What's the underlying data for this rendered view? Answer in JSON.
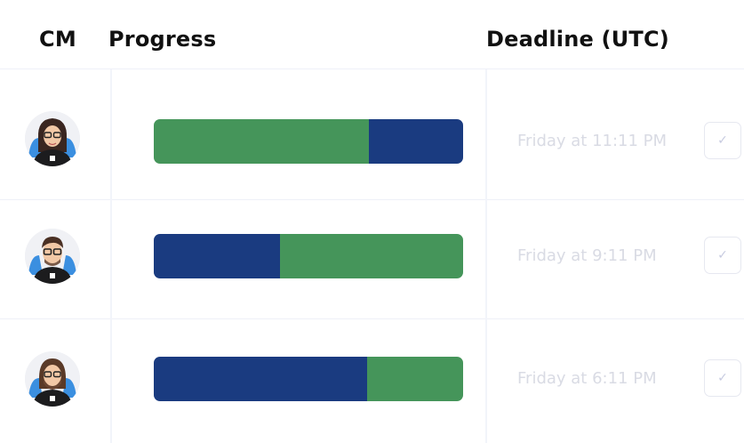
{
  "header": {
    "cm": "CM",
    "progress": "Progress",
    "deadline": "Deadline (UTC)"
  },
  "colors": {
    "green": "#45955a",
    "blue": "#1a3b80"
  },
  "rows": [
    {
      "avatar": "woman-glasses-avatar",
      "progress": [
        {
          "color": "green",
          "fraction": 0.695
        },
        {
          "color": "blue",
          "fraction": 0.305
        }
      ],
      "deadline": "Friday at 11:11 PM",
      "check_icon": "✓"
    },
    {
      "avatar": "man-glasses-avatar",
      "progress": [
        {
          "color": "blue",
          "fraction": 0.408
        },
        {
          "color": "green",
          "fraction": 0.592
        }
      ],
      "deadline": "Friday at 9:11 PM",
      "check_icon": "✓"
    },
    {
      "avatar": "man-beard-avatar",
      "progress": [
        {
          "color": "blue",
          "fraction": 0.69
        },
        {
          "color": "green",
          "fraction": 0.31
        }
      ],
      "deadline": "Friday at 6:11 PM",
      "check_icon": "✓"
    }
  ]
}
